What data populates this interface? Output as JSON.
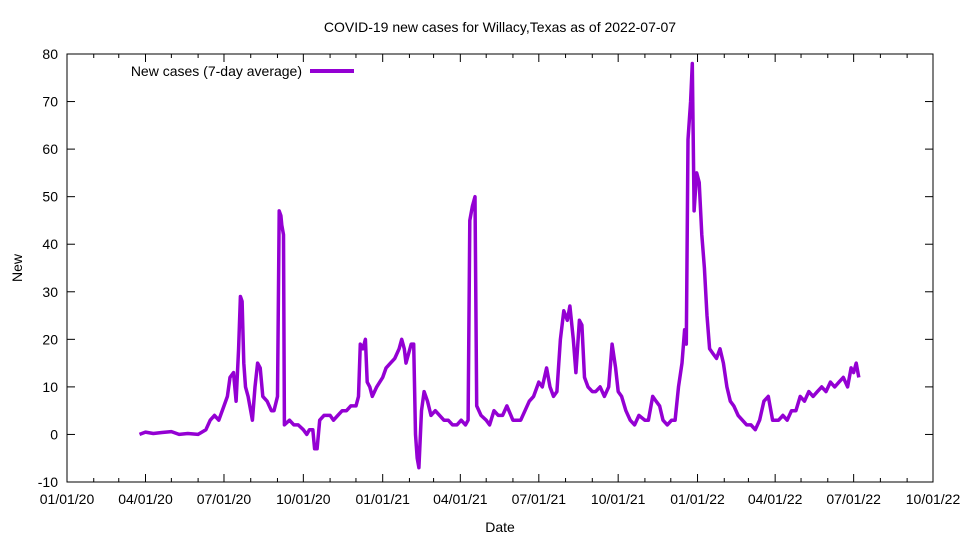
{
  "chart_data": {
    "type": "line",
    "title": "COVID-19 new cases for Willacy,Texas as of 2022-07-07",
    "xlabel": "Date",
    "ylabel": "New",
    "ylim": [
      -10,
      80
    ],
    "yticks": [
      -10,
      0,
      10,
      20,
      30,
      40,
      50,
      60,
      70,
      80
    ],
    "xlim": [
      "2020-01-01",
      "2022-10-01"
    ],
    "xticks": [
      {
        "date": "2020-01-01",
        "label": "01/01/20"
      },
      {
        "date": "2020-04-01",
        "label": "04/01/20"
      },
      {
        "date": "2020-07-01",
        "label": "07/01/20"
      },
      {
        "date": "2020-10-01",
        "label": "10/01/20"
      },
      {
        "date": "2021-01-01",
        "label": "01/01/21"
      },
      {
        "date": "2021-04-01",
        "label": "04/01/21"
      },
      {
        "date": "2021-07-01",
        "label": "07/01/21"
      },
      {
        "date": "2021-10-01",
        "label": "10/01/21"
      },
      {
        "date": "2022-01-01",
        "label": "01/01/22"
      },
      {
        "date": "2022-04-01",
        "label": "04/01/22"
      },
      {
        "date": "2022-07-01",
        "label": "07/01/22"
      },
      {
        "date": "2022-10-01",
        "label": "10/01/22"
      }
    ],
    "grid": false,
    "legend": "top-left",
    "series": [
      {
        "name": "New cases (7-day average)",
        "color": "#9400d3",
        "points": [
          [
            "2020-03-25",
            0
          ],
          [
            "2020-04-01",
            0.5
          ],
          [
            "2020-04-10",
            0.2
          ],
          [
            "2020-04-20",
            0.4
          ],
          [
            "2020-05-01",
            0.6
          ],
          [
            "2020-05-10",
            0
          ],
          [
            "2020-05-20",
            0.2
          ],
          [
            "2020-06-01",
            0
          ],
          [
            "2020-06-10",
            1
          ],
          [
            "2020-06-15",
            3
          ],
          [
            "2020-06-20",
            4
          ],
          [
            "2020-06-25",
            3
          ],
          [
            "2020-07-01",
            6
          ],
          [
            "2020-07-05",
            8
          ],
          [
            "2020-07-08",
            12
          ],
          [
            "2020-07-12",
            13
          ],
          [
            "2020-07-15",
            7
          ],
          [
            "2020-07-18",
            18
          ],
          [
            "2020-07-20",
            29
          ],
          [
            "2020-07-22",
            28
          ],
          [
            "2020-07-24",
            15
          ],
          [
            "2020-07-26",
            10
          ],
          [
            "2020-07-29",
            8
          ],
          [
            "2020-08-01",
            5
          ],
          [
            "2020-08-03",
            3
          ],
          [
            "2020-08-06",
            10
          ],
          [
            "2020-08-09",
            15
          ],
          [
            "2020-08-12",
            14
          ],
          [
            "2020-08-15",
            8
          ],
          [
            "2020-08-20",
            7
          ],
          [
            "2020-08-25",
            5
          ],
          [
            "2020-08-28",
            5
          ],
          [
            "2020-09-01",
            8
          ],
          [
            "2020-09-03",
            47
          ],
          [
            "2020-09-05",
            46
          ],
          [
            "2020-09-06",
            44
          ],
          [
            "2020-09-08",
            42
          ],
          [
            "2020-09-09",
            2
          ],
          [
            "2020-09-15",
            3
          ],
          [
            "2020-09-20",
            2
          ],
          [
            "2020-09-25",
            2
          ],
          [
            "2020-10-01",
            1
          ],
          [
            "2020-10-05",
            0
          ],
          [
            "2020-10-08",
            1
          ],
          [
            "2020-10-12",
            1
          ],
          [
            "2020-10-14",
            -3
          ],
          [
            "2020-10-17",
            -3
          ],
          [
            "2020-10-20",
            3
          ],
          [
            "2020-10-25",
            4
          ],
          [
            "2020-11-01",
            4
          ],
          [
            "2020-11-05",
            3
          ],
          [
            "2020-11-10",
            4
          ],
          [
            "2020-11-15",
            5
          ],
          [
            "2020-11-20",
            5
          ],
          [
            "2020-11-25",
            6
          ],
          [
            "2020-12-01",
            6
          ],
          [
            "2020-12-04",
            8
          ],
          [
            "2020-12-06",
            19
          ],
          [
            "2020-12-09",
            18
          ],
          [
            "2020-12-12",
            20
          ],
          [
            "2020-12-14",
            11
          ],
          [
            "2020-12-17",
            10
          ],
          [
            "2020-12-20",
            8
          ],
          [
            "2020-12-25",
            10
          ],
          [
            "2021-01-01",
            12
          ],
          [
            "2021-01-05",
            14
          ],
          [
            "2021-01-10",
            15
          ],
          [
            "2021-01-15",
            16
          ],
          [
            "2021-01-20",
            18
          ],
          [
            "2021-01-23",
            20
          ],
          [
            "2021-01-26",
            18
          ],
          [
            "2021-01-28",
            15
          ],
          [
            "2021-01-31",
            17
          ],
          [
            "2021-02-03",
            19
          ],
          [
            "2021-02-06",
            19
          ],
          [
            "2021-02-08",
            0
          ],
          [
            "2021-02-10",
            -5
          ],
          [
            "2021-02-12",
            -7
          ],
          [
            "2021-02-15",
            5
          ],
          [
            "2021-02-18",
            9
          ],
          [
            "2021-02-22",
            7
          ],
          [
            "2021-02-26",
            4
          ],
          [
            "2021-03-03",
            5
          ],
          [
            "2021-03-08",
            4
          ],
          [
            "2021-03-13",
            3
          ],
          [
            "2021-03-18",
            3
          ],
          [
            "2021-03-23",
            2
          ],
          [
            "2021-03-28",
            2
          ],
          [
            "2021-04-02",
            3
          ],
          [
            "2021-04-07",
            2
          ],
          [
            "2021-04-10",
            3
          ],
          [
            "2021-04-12",
            45
          ],
          [
            "2021-04-15",
            48
          ],
          [
            "2021-04-18",
            50
          ],
          [
            "2021-04-20",
            6
          ],
          [
            "2021-04-25",
            4
          ],
          [
            "2021-05-01",
            3
          ],
          [
            "2021-05-05",
            2
          ],
          [
            "2021-05-10",
            5
          ],
          [
            "2021-05-15",
            4
          ],
          [
            "2021-05-20",
            4
          ],
          [
            "2021-05-25",
            6
          ],
          [
            "2021-06-01",
            3
          ],
          [
            "2021-06-05",
            3
          ],
          [
            "2021-06-10",
            3
          ],
          [
            "2021-06-15",
            5
          ],
          [
            "2021-06-20",
            7
          ],
          [
            "2021-06-25",
            8
          ],
          [
            "2021-07-01",
            11
          ],
          [
            "2021-07-05",
            10
          ],
          [
            "2021-07-10",
            14
          ],
          [
            "2021-07-14",
            10
          ],
          [
            "2021-07-18",
            8
          ],
          [
            "2021-07-22",
            9
          ],
          [
            "2021-07-26",
            20
          ],
          [
            "2021-07-30",
            26
          ],
          [
            "2021-08-03",
            24
          ],
          [
            "2021-08-06",
            27
          ],
          [
            "2021-08-10",
            20
          ],
          [
            "2021-08-13",
            13
          ],
          [
            "2021-08-17",
            24
          ],
          [
            "2021-08-20",
            23
          ],
          [
            "2021-08-23",
            12
          ],
          [
            "2021-08-27",
            10
          ],
          [
            "2021-09-01",
            9
          ],
          [
            "2021-09-05",
            9
          ],
          [
            "2021-09-10",
            10
          ],
          [
            "2021-09-15",
            8
          ],
          [
            "2021-09-20",
            10
          ],
          [
            "2021-09-24",
            19
          ],
          [
            "2021-09-28",
            14
          ],
          [
            "2021-10-01",
            9
          ],
          [
            "2021-10-05",
            8
          ],
          [
            "2021-10-10",
            5
          ],
          [
            "2021-10-15",
            3
          ],
          [
            "2021-10-20",
            2
          ],
          [
            "2021-10-25",
            4
          ],
          [
            "2021-11-01",
            3
          ],
          [
            "2021-11-05",
            3
          ],
          [
            "2021-11-10",
            8
          ],
          [
            "2021-11-14",
            7
          ],
          [
            "2021-11-18",
            6
          ],
          [
            "2021-11-22",
            3
          ],
          [
            "2021-11-27",
            2
          ],
          [
            "2021-12-02",
            3
          ],
          [
            "2021-12-06",
            3
          ],
          [
            "2021-12-10",
            10
          ],
          [
            "2021-12-14",
            15
          ],
          [
            "2021-12-17",
            22
          ],
          [
            "2021-12-19",
            19
          ],
          [
            "2021-12-21",
            62
          ],
          [
            "2021-12-24",
            70
          ],
          [
            "2021-12-26",
            78
          ],
          [
            "2021-12-28",
            47
          ],
          [
            "2021-12-31",
            55
          ],
          [
            "2022-01-03",
            53
          ],
          [
            "2022-01-06",
            42
          ],
          [
            "2022-01-09",
            35
          ],
          [
            "2022-01-12",
            25
          ],
          [
            "2022-01-15",
            18
          ],
          [
            "2022-01-19",
            17
          ],
          [
            "2022-01-23",
            16
          ],
          [
            "2022-01-27",
            18
          ],
          [
            "2022-01-31",
            15
          ],
          [
            "2022-02-04",
            10
          ],
          [
            "2022-02-08",
            7
          ],
          [
            "2022-02-12",
            6
          ],
          [
            "2022-02-17",
            4
          ],
          [
            "2022-02-22",
            3
          ],
          [
            "2022-02-27",
            2
          ],
          [
            "2022-03-04",
            2
          ],
          [
            "2022-03-09",
            1
          ],
          [
            "2022-03-14",
            3
          ],
          [
            "2022-03-19",
            7
          ],
          [
            "2022-03-24",
            8
          ],
          [
            "2022-03-29",
            3
          ],
          [
            "2022-04-05",
            3
          ],
          [
            "2022-04-10",
            4
          ],
          [
            "2022-04-15",
            3
          ],
          [
            "2022-04-20",
            5
          ],
          [
            "2022-04-25",
            5
          ],
          [
            "2022-04-30",
            8
          ],
          [
            "2022-05-05",
            7
          ],
          [
            "2022-05-10",
            9
          ],
          [
            "2022-05-15",
            8
          ],
          [
            "2022-05-20",
            9
          ],
          [
            "2022-05-25",
            10
          ],
          [
            "2022-05-30",
            9
          ],
          [
            "2022-06-04",
            11
          ],
          [
            "2022-06-09",
            10
          ],
          [
            "2022-06-14",
            11
          ],
          [
            "2022-06-19",
            12
          ],
          [
            "2022-06-24",
            10
          ],
          [
            "2022-06-28",
            14
          ],
          [
            "2022-07-01",
            13
          ],
          [
            "2022-07-04",
            15
          ],
          [
            "2022-07-07",
            12
          ]
        ]
      }
    ]
  }
}
